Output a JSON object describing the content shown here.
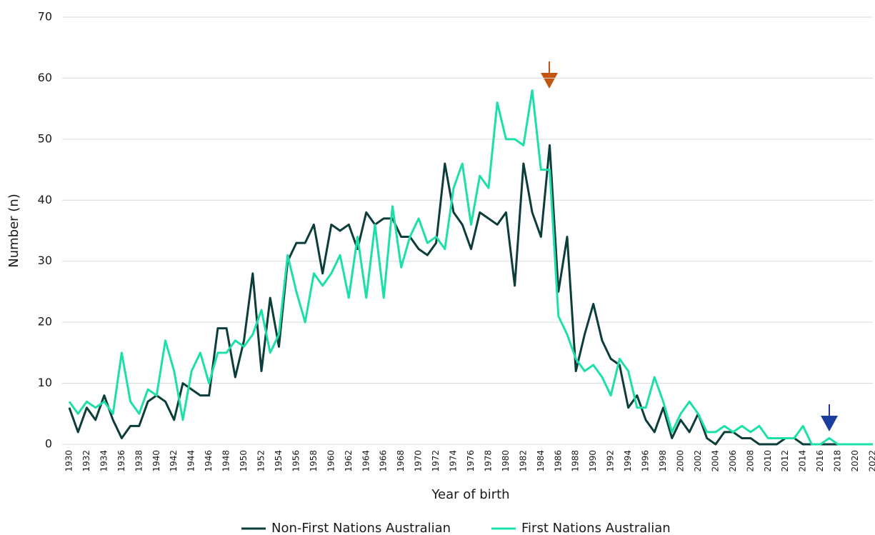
{
  "chart_data": {
    "type": "line",
    "xlabel": "Year of birth",
    "ylabel": "Number (n)",
    "x": [
      1930,
      1931,
      1932,
      1933,
      1934,
      1935,
      1936,
      1937,
      1938,
      1939,
      1940,
      1941,
      1942,
      1943,
      1944,
      1945,
      1946,
      1947,
      1948,
      1949,
      1950,
      1951,
      1952,
      1953,
      1954,
      1955,
      1956,
      1957,
      1958,
      1959,
      1960,
      1961,
      1962,
      1963,
      1964,
      1965,
      1966,
      1967,
      1968,
      1969,
      1970,
      1971,
      1972,
      1973,
      1974,
      1975,
      1976,
      1977,
      1978,
      1979,
      1980,
      1981,
      1982,
      1983,
      1984,
      1985,
      1986,
      1987,
      1988,
      1989,
      1990,
      1991,
      1992,
      1993,
      1994,
      1995,
      1996,
      1997,
      1998,
      1999,
      2000,
      2001,
      2002,
      2003,
      2004,
      2005,
      2006,
      2007,
      2008,
      2009,
      2010,
      2011,
      2012,
      2013,
      2014,
      2015,
      2016,
      2017,
      2018,
      2019,
      2020,
      2021,
      2022
    ],
    "series": [
      {
        "name": "Non-First Nations Australian",
        "color": "#0b3d3a",
        "values": [
          6,
          2,
          6,
          4,
          8,
          4,
          1,
          3,
          3,
          7,
          8,
          7,
          4,
          10,
          9,
          8,
          8,
          19,
          19,
          11,
          17,
          28,
          12,
          24,
          16,
          30,
          33,
          33,
          36,
          28,
          36,
          35,
          36,
          32,
          38,
          36,
          37,
          37,
          34,
          34,
          32,
          31,
          33,
          46,
          38,
          36,
          32,
          38,
          37,
          36,
          38,
          26,
          46,
          38,
          34,
          49,
          25,
          34,
          12,
          18,
          23,
          17,
          14,
          13,
          6,
          8,
          4,
          2,
          6,
          1,
          4,
          2,
          5,
          1,
          0,
          2,
          2,
          1,
          1,
          0,
          0,
          0,
          1,
          1,
          0,
          0,
          0,
          0,
          0,
          0,
          0,
          0,
          0
        ]
      },
      {
        "name": "First Nations Australian",
        "color": "#1de0a8",
        "values": [
          7,
          5,
          7,
          6,
          7,
          5,
          15,
          7,
          5,
          9,
          8,
          17,
          12,
          4,
          12,
          15,
          10,
          15,
          15,
          17,
          16,
          18,
          22,
          15,
          18,
          31,
          25,
          20,
          28,
          26,
          28,
          31,
          24,
          34,
          24,
          36,
          24,
          39,
          29,
          34,
          37,
          33,
          34,
          32,
          42,
          46,
          36,
          44,
          42,
          56,
          50,
          50,
          49,
          58,
          45,
          45,
          21,
          18,
          14,
          12,
          13,
          11,
          8,
          14,
          12,
          6,
          6,
          11,
          7,
          2,
          5,
          7,
          5,
          2,
          2,
          3,
          2,
          3,
          2,
          3,
          1,
          1,
          1,
          1,
          3,
          0,
          0,
          1,
          0,
          0,
          0,
          0,
          0
        ]
      }
    ],
    "xlim": [
      1930,
      2022
    ],
    "xticks": [
      1930,
      1932,
      1934,
      1936,
      1938,
      1940,
      1942,
      1944,
      1946,
      1948,
      1950,
      1952,
      1954,
      1956,
      1958,
      1960,
      1962,
      1964,
      1966,
      1968,
      1970,
      1972,
      1974,
      1976,
      1978,
      1980,
      1982,
      1984,
      1986,
      1988,
      1990,
      1992,
      1994,
      1996,
      1998,
      2000,
      2002,
      2004,
      2006,
      2008,
      2010,
      2012,
      2014,
      2016,
      2018,
      2020,
      2022
    ],
    "ylim": [
      0,
      70
    ],
    "yticks": [
      0,
      10,
      20,
      30,
      40,
      50,
      60,
      70
    ],
    "grid": true,
    "legend": "bottom"
  }
}
